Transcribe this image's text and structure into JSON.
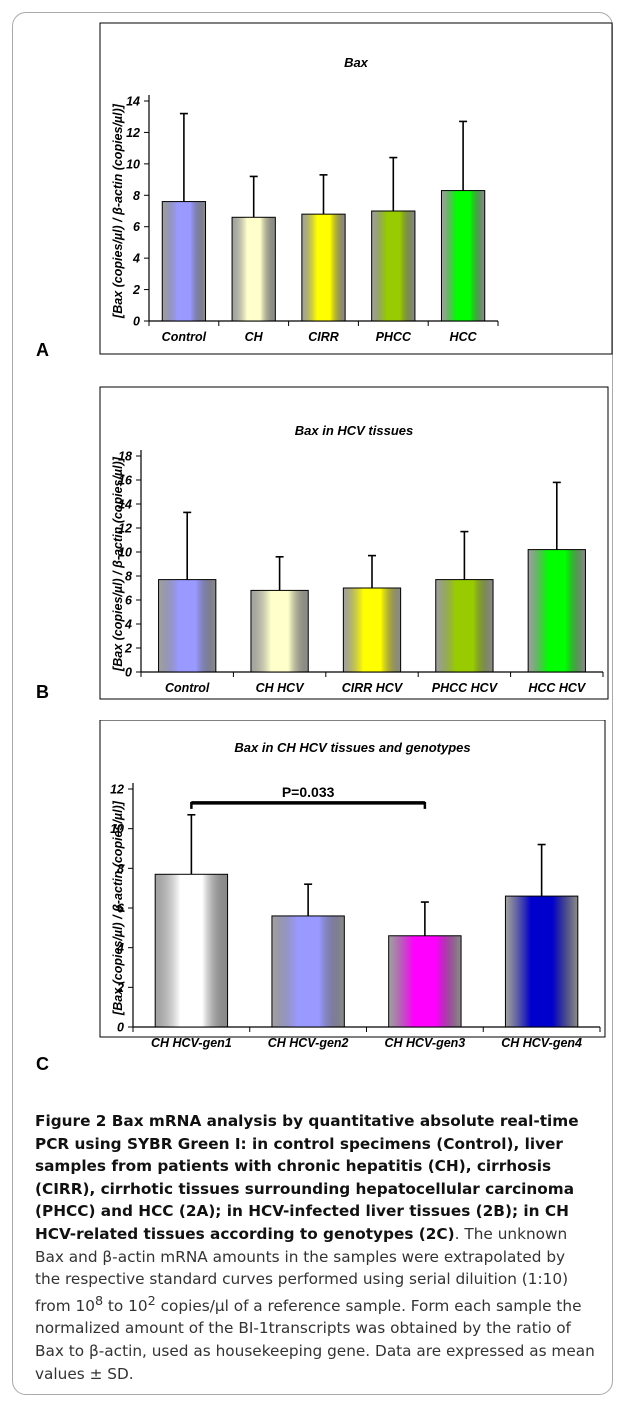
{
  "chart_data": [
    {
      "type": "bar",
      "panel_label": "A",
      "title": "Bax",
      "ylabel": "[Bax (copies/µl) / β-actin (copies/µl)]",
      "categories": [
        "Control",
        "CH",
        "CIRR",
        "PHCC",
        "HCC"
      ],
      "values": [
        7.6,
        6.6,
        6.8,
        7.0,
        8.3
      ],
      "errors": [
        5.6,
        2.6,
        2.5,
        3.4,
        4.4
      ],
      "colors": [
        "#9999ff",
        "#ffffcc",
        "#ffff00",
        "#99cc00",
        "#00ff00"
      ],
      "ylim": [
        0,
        14
      ],
      "yticks": [
        0,
        2,
        4,
        6,
        8,
        10,
        12,
        14
      ],
      "error_bars": "mean ± SD (upper only)",
      "grid": false
    },
    {
      "type": "bar",
      "panel_label": "B",
      "title": "Bax in HCV tissues",
      "ylabel": "[Bax (copies/µl) / β-actin (copies/µl)]",
      "categories": [
        "Control",
        "CH HCV",
        "CIRR HCV",
        "PHCC HCV",
        "HCC HCV"
      ],
      "values": [
        7.7,
        6.8,
        7.0,
        7.7,
        10.2
      ],
      "errors": [
        5.6,
        2.8,
        2.7,
        4.0,
        5.6
      ],
      "colors": [
        "#9999ff",
        "#ffffcc",
        "#ffff00",
        "#99cc00",
        "#00ff00"
      ],
      "ylim": [
        0,
        18
      ],
      "yticks": [
        0,
        2,
        4,
        6,
        8,
        10,
        12,
        14,
        16,
        18
      ],
      "error_bars": "mean ± SD (upper only)",
      "grid": false
    },
    {
      "type": "bar",
      "panel_label": "C",
      "title": "Bax in CH HCV tissues and genotypes",
      "ylabel": "[Bax (copies/µl) / β-actin (copies/µl)]",
      "categories": [
        "CH HCV-gen1",
        "CH HCV-gen2",
        "CH HCV-gen3",
        "CH HCV-gen4"
      ],
      "values": [
        7.7,
        5.6,
        4.6,
        6.6
      ],
      "errors": [
        3.0,
        1.6,
        1.7,
        2.6
      ],
      "colors": [
        "#ffffff",
        "#9999ff",
        "#ff00ff",
        "#0000cc"
      ],
      "ylim": [
        0,
        12
      ],
      "yticks": [
        0,
        2,
        4,
        6,
        8,
        10,
        12
      ],
      "error_bars": "mean ± SD (upper only)",
      "grid": false,
      "annotations": [
        {
          "text": "P=0.033",
          "from_category": "CH HCV-gen1",
          "to_category": "CH HCV-gen3",
          "y": 11.3
        }
      ]
    }
  ],
  "caption": {
    "lead": "Figure 2 Bax mRNA analysis by quantitative absolute real-time PCR using SYBR Green I: in control specimens (Control), liver samples from patients with chronic hepatitis (CH), cirrhosis (CIRR), cirrhotic tissues surrounding hepatocellular carcinoma (PHCC) and HCC (2A); in HCV-infected liver tissues (2B); in CH HCV-related tissues according to genotypes (2C)",
    "rest_before_sup1": ". The unknown Bax and β-actin mRNA amounts in the samples were extrapolated by the respective standard curves performed using serial diluition (1:10) from 10",
    "sup1": "8",
    "rest_between": " to 10",
    "sup2": "2",
    "rest_after": " copies/µl of a reference sample. Form each sample the normalized amount of the BI-1transcripts was obtained by the ratio of Bax to β-actin, used as housekeeping gene. Data are expressed as mean values ± SD."
  }
}
